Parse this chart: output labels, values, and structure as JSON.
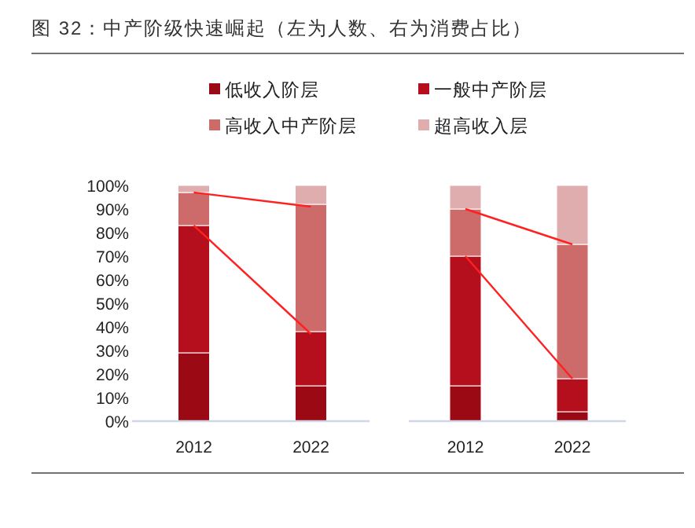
{
  "chart_data": [
    {
      "type": "bar",
      "title": "图 32：中产阶级快速崛起（左为人数、右为消费占比）",
      "categories": [
        "2012",
        "2022"
      ],
      "stacked": true,
      "legend": "top",
      "grid": false,
      "ylim": [
        0,
        100
      ],
      "yticks": [
        {
          "value": 0,
          "label": "0%"
        },
        {
          "value": 10,
          "label": "10%"
        },
        {
          "value": 20,
          "label": "20%"
        },
        {
          "value": 30,
          "label": "30%"
        },
        {
          "value": 40,
          "label": "40%"
        },
        {
          "value": 50,
          "label": "50%"
        },
        {
          "value": 60,
          "label": "60%"
        },
        {
          "value": 70,
          "label": "70%"
        },
        {
          "value": 80,
          "label": "80%"
        },
        {
          "value": 90,
          "label": "90%"
        },
        {
          "value": 100,
          "label": "100%"
        }
      ],
      "series": [
        {
          "name": "低收入阶层",
          "color": "#9b0a14",
          "values": [
            29,
            15
          ]
        },
        {
          "name": "一般中产阶层",
          "color": "#b50e1c",
          "values": [
            54,
            23
          ]
        },
        {
          "name": "高收入中产阶层",
          "color": "#cd6b6b",
          "values": [
            14,
            54
          ]
        },
        {
          "name": "超高收入层",
          "color": "#e0adae",
          "values": [
            3,
            8
          ]
        },
        {
          "type": "line",
          "color": "#ff2020",
          "values": [
            83,
            37
          ]
        },
        {
          "type": "line",
          "color": "#ff2020",
          "values": [
            97,
            91
          ]
        }
      ]
    },
    {
      "type": "bar",
      "categories": [
        "2012",
        "2022"
      ],
      "stacked": true,
      "legend": false,
      "grid": false,
      "tick_labels": "x",
      "ylim": [
        0,
        100
      ],
      "series": [
        {
          "color": "#9b0a14",
          "values": [
            15,
            4
          ]
        },
        {
          "color": "#b50e1c",
          "values": [
            55,
            14
          ]
        },
        {
          "color": "#cd6b6b",
          "values": [
            20,
            57
          ]
        },
        {
          "color": "#e0adae",
          "values": [
            10,
            25
          ]
        },
        {
          "type": "line",
          "color": "#ff2020",
          "values": [
            70,
            18
          ]
        },
        {
          "type": "line",
          "color": "#ff2020",
          "values": [
            90,
            75
          ]
        }
      ]
    }
  ]
}
